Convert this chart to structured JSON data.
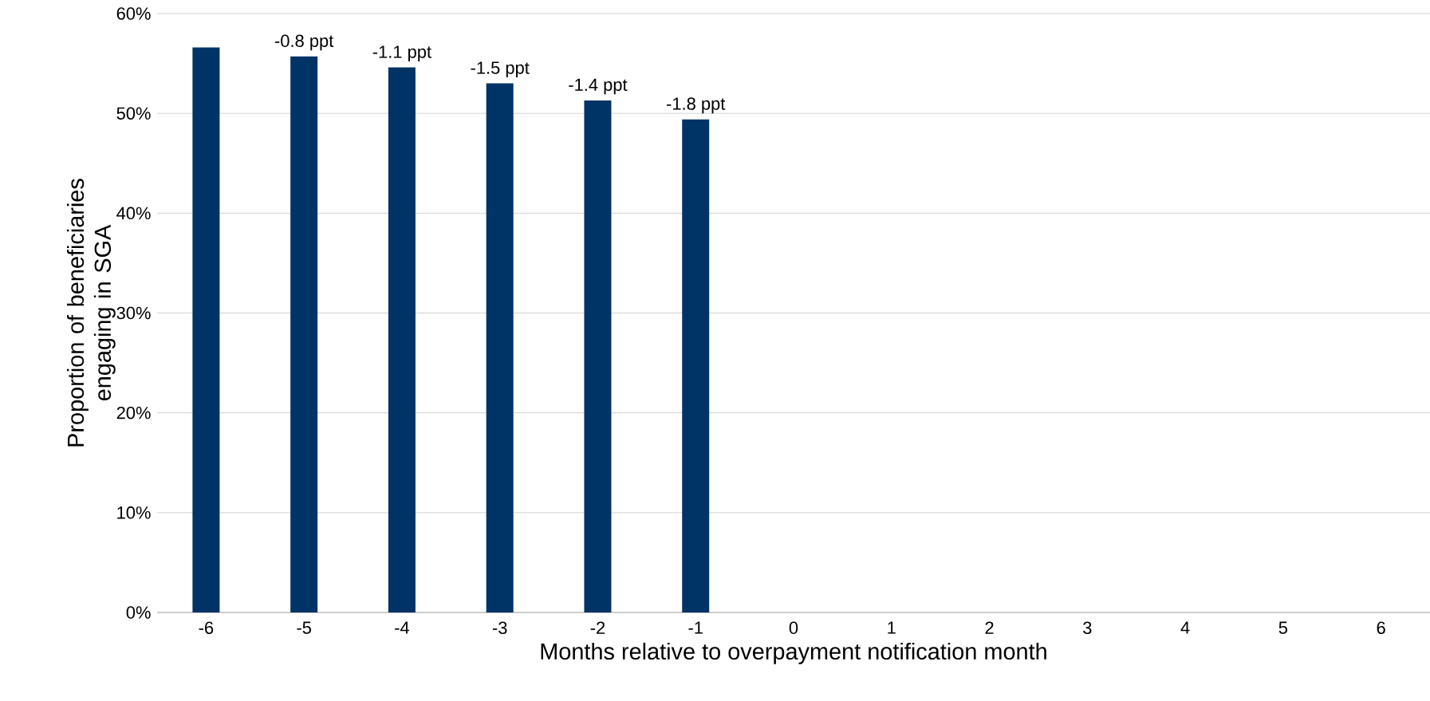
{
  "chart_data": {
    "type": "bar",
    "xlabel": "Months relative to overpayment notification month",
    "ylabel": "Proportion of beneficiaries engaging in SGA",
    "categories": [
      "-6",
      "-5",
      "-4",
      "-3",
      "-2",
      "-1",
      "0",
      "1",
      "2",
      "3",
      "4",
      "5",
      "6"
    ],
    "values": [
      56.6,
      55.7,
      54.6,
      53.0,
      51.3,
      49.4,
      null,
      null,
      null,
      null,
      null,
      null,
      null
    ],
    "annotations": [
      {
        "text": "-0.8 ppt",
        "x": "-5",
        "y": 55.7
      },
      {
        "text": "-1.1 ppt",
        "x": "-4",
        "y": 54.6
      },
      {
        "text": "-1.5 ppt",
        "x": "-3",
        "y": 53.0
      },
      {
        "text": "-1.4 ppt",
        "x": "-2",
        "y": 51.3
      },
      {
        "text": "-1.8 ppt",
        "x": "-1",
        "y": 49.4
      }
    ],
    "color": "#003366",
    "ylim": [
      0,
      60
    ],
    "yticks": [
      {
        "value": 0,
        "label": "0%"
      },
      {
        "value": 10,
        "label": "10%"
      },
      {
        "value": 20,
        "label": "20%"
      },
      {
        "value": 30,
        "label": "30%"
      },
      {
        "value": 40,
        "label": "40%"
      },
      {
        "value": 50,
        "label": "50%"
      },
      {
        "value": 60,
        "label": "60%"
      }
    ],
    "grid": "y"
  }
}
